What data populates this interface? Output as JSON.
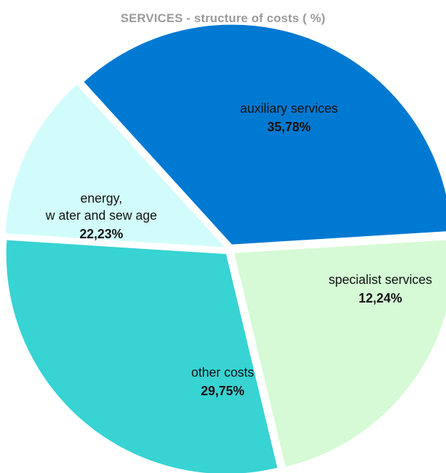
{
  "chart_data": {
    "type": "pie",
    "title": "SERVICES - structure of costs ( %)",
    "slices": [
      {
        "label": "auxiliary services",
        "value": 35.78,
        "value_label": "35,78%",
        "color": "#0079d2"
      },
      {
        "label": "specialist services",
        "value": 12.24,
        "value_label": "12,24%",
        "color": "#d2fcfc"
      },
      {
        "label": "other costs",
        "value": 29.75,
        "value_label": "29,75%",
        "color": "#38d3d3"
      },
      {
        "label": [
          "energy,",
          "w ater and sew age"
        ],
        "value": 22.23,
        "value_label": "22,23%",
        "color": "#d5fad5"
      }
    ],
    "legend": "none"
  }
}
